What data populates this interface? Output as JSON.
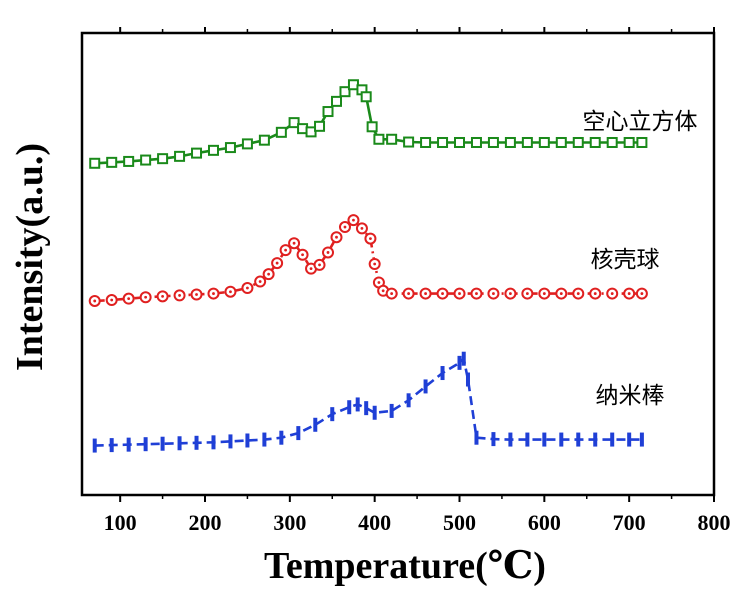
{
  "chart_data": {
    "type": "line",
    "xlabel": "Temperature(℃)",
    "ylabel": "Intensity(a.u.)",
    "xlim": [
      55,
      800
    ],
    "ylim": [
      0,
      1
    ],
    "x_ticks": [
      100,
      200,
      300,
      400,
      500,
      600,
      700,
      800
    ],
    "grid": false,
    "legend": "none",
    "series": [
      {
        "name": "空心立方体",
        "color": "#1a8a1a",
        "marker": "square",
        "line": "solid",
        "x": [
          70,
          90,
          110,
          130,
          150,
          170,
          190,
          210,
          230,
          250,
          270,
          290,
          305,
          315,
          325,
          335,
          345,
          355,
          365,
          375,
          385,
          390,
          397,
          405,
          420,
          440,
          460,
          480,
          500,
          520,
          540,
          560,
          580,
          600,
          620,
          640,
          660,
          680,
          700,
          715
        ],
        "y": [
          0.718,
          0.72,
          0.722,
          0.725,
          0.728,
          0.733,
          0.74,
          0.746,
          0.752,
          0.76,
          0.768,
          0.785,
          0.806,
          0.793,
          0.786,
          0.798,
          0.83,
          0.852,
          0.873,
          0.888,
          0.877,
          0.862,
          0.797,
          0.77,
          0.77,
          0.764,
          0.763,
          0.763,
          0.763,
          0.763,
          0.763,
          0.763,
          0.763,
          0.763,
          0.763,
          0.763,
          0.763,
          0.763,
          0.763,
          0.763
        ]
      },
      {
        "name": "核壳球",
        "color": "#e02020",
        "marker": "circle",
        "line": "dash-dot",
        "x": [
          70,
          90,
          110,
          130,
          150,
          170,
          190,
          210,
          230,
          250,
          265,
          275,
          285,
          295,
          305,
          315,
          325,
          335,
          345,
          355,
          365,
          375,
          385,
          395,
          400,
          405,
          410,
          420,
          440,
          460,
          480,
          500,
          520,
          540,
          560,
          580,
          600,
          620,
          640,
          660,
          680,
          700,
          715
        ],
        "y": [
          0.42,
          0.422,
          0.425,
          0.428,
          0.43,
          0.432,
          0.434,
          0.436,
          0.44,
          0.448,
          0.462,
          0.478,
          0.502,
          0.53,
          0.545,
          0.52,
          0.49,
          0.498,
          0.525,
          0.558,
          0.58,
          0.595,
          0.577,
          0.555,
          0.5,
          0.46,
          0.442,
          0.436,
          0.436,
          0.436,
          0.436,
          0.436,
          0.436,
          0.436,
          0.436,
          0.436,
          0.436,
          0.436,
          0.436,
          0.436,
          0.436,
          0.436,
          0.436
        ],
        "y_rescaled_note": ""
      },
      {
        "name": "纳米棒",
        "color": "#1f3fd6",
        "marker": "vbar",
        "line": "dash",
        "x": [
          70,
          90,
          110,
          130,
          150,
          170,
          190,
          210,
          230,
          250,
          270,
          290,
          310,
          330,
          350,
          370,
          380,
          390,
          400,
          420,
          440,
          460,
          480,
          500,
          505,
          510,
          520,
          540,
          560,
          580,
          600,
          620,
          640,
          660,
          680,
          700,
          715
        ],
        "y": [
          0.107,
          0.108,
          0.109,
          0.11,
          0.111,
          0.112,
          0.113,
          0.114,
          0.116,
          0.118,
          0.12,
          0.124,
          0.134,
          0.152,
          0.175,
          0.19,
          0.196,
          0.188,
          0.178,
          0.182,
          0.205,
          0.235,
          0.264,
          0.286,
          0.295,
          0.25,
          0.124,
          0.121,
          0.12,
          0.12,
          0.12,
          0.12,
          0.12,
          0.12,
          0.12,
          0.12,
          0.12
        ]
      }
    ],
    "labels": [
      "空心立方体",
      "核壳球",
      "纳米棒"
    ]
  }
}
